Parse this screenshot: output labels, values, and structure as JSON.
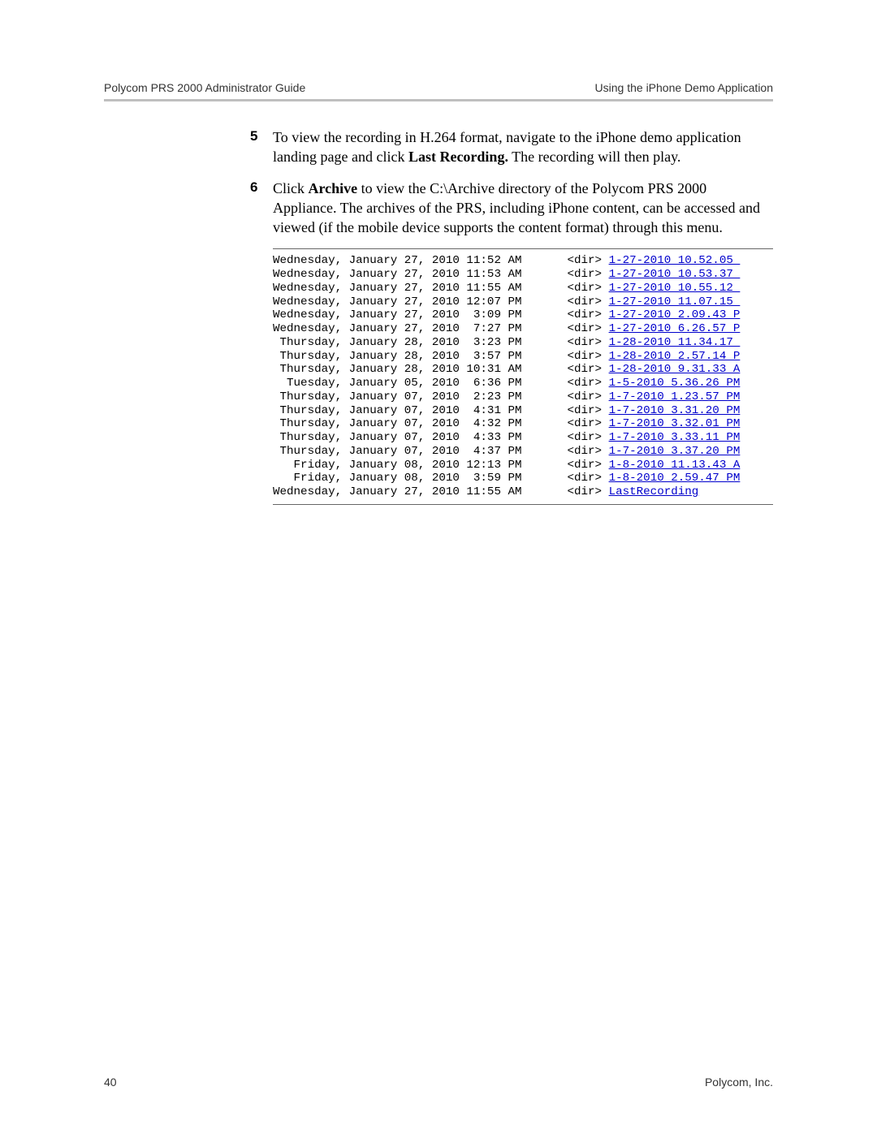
{
  "header": {
    "left": "Polycom PRS 2000 Administrator Guide",
    "right": "Using the iPhone Demo Application"
  },
  "steps": [
    {
      "num": "5",
      "html": "To view the recording in H.264 format, navigate to the iPhone demo application landing page and click <b>Last Recording.</b> The recording will then play."
    },
    {
      "num": "6",
      "html": "Click <b>Archive</b> to view the C:\\Archive directory of the Polycom PRS 2000 Appliance. The archives of the PRS, including iPhone content, can be accessed and viewed (if the mobile device supports the content format) through this menu."
    }
  ],
  "listing": {
    "link_color": "#0000cc",
    "text_color": "#000000",
    "font_family_mono": "Courier New",
    "font_size_pt": 11,
    "rows": [
      {
        "date": "Wednesday, January 27, 2010 11:52 AM",
        "dir": "<dir>",
        "link": "1-27-2010 10.52.05 "
      },
      {
        "date": "Wednesday, January 27, 2010 11:53 AM",
        "dir": "<dir>",
        "link": "1-27-2010 10.53.37 "
      },
      {
        "date": "Wednesday, January 27, 2010 11:55 AM",
        "dir": "<dir>",
        "link": "1-27-2010 10.55.12 "
      },
      {
        "date": "Wednesday, January 27, 2010 12:07 PM",
        "dir": "<dir>",
        "link": "1-27-2010 11.07.15 "
      },
      {
        "date": "Wednesday, January 27, 2010  3:09 PM",
        "dir": "<dir>",
        "link": "1-27-2010 2.09.43 P"
      },
      {
        "date": "Wednesday, January 27, 2010  7:27 PM",
        "dir": "<dir>",
        "link": "1-27-2010 6.26.57 P"
      },
      {
        "date": " Thursday, January 28, 2010  3:23 PM",
        "dir": "<dir>",
        "link": "1-28-2010 11.34.17 "
      },
      {
        "date": " Thursday, January 28, 2010  3:57 PM",
        "dir": "<dir>",
        "link": "1-28-2010 2.57.14 P"
      },
      {
        "date": " Thursday, January 28, 2010 10:31 AM",
        "dir": "<dir>",
        "link": "1-28-2010 9.31.33 A"
      },
      {
        "date": "  Tuesday, January 05, 2010  6:36 PM",
        "dir": "<dir>",
        "link": "1-5-2010 5.36.26 PM"
      },
      {
        "date": " Thursday, January 07, 2010  2:23 PM",
        "dir": "<dir>",
        "link": "1-7-2010 1.23.57 PM"
      },
      {
        "date": " Thursday, January 07, 2010  4:31 PM",
        "dir": "<dir>",
        "link": "1-7-2010 3.31.20 PM"
      },
      {
        "date": " Thursday, January 07, 2010  4:32 PM",
        "dir": "<dir>",
        "link": "1-7-2010 3.32.01 PM"
      },
      {
        "date": " Thursday, January 07, 2010  4:33 PM",
        "dir": "<dir>",
        "link": "1-7-2010 3.33.11 PM"
      },
      {
        "date": " Thursday, January 07, 2010  4:37 PM",
        "dir": "<dir>",
        "link": "1-7-2010 3.37.20 PM"
      },
      {
        "date": "   Friday, January 08, 2010 12:13 PM",
        "dir": "<dir>",
        "link": "1-8-2010 11.13.43 A"
      },
      {
        "date": "   Friday, January 08, 2010  3:59 PM",
        "dir": "<dir>",
        "link": "1-8-2010 2.59.47 PM"
      },
      {
        "date": "Wednesday, January 27, 2010 11:55 AM",
        "dir": "<dir>",
        "link": "LastRecording"
      }
    ]
  },
  "footer": {
    "page_number": "40",
    "company": "Polycom, Inc."
  }
}
